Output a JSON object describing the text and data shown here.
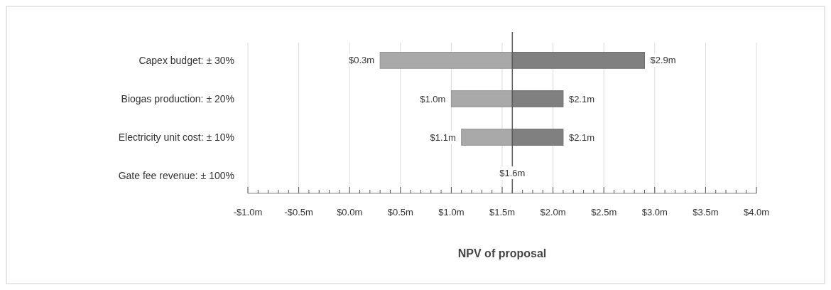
{
  "chart_data": {
    "type": "bar",
    "orientation": "horizontal",
    "categories": [
      "Capex budget: ± 30%",
      "Biogas production: ± 20%",
      "Electricity unit cost: ± 10%",
      "Gate fee revenue: ± 100%"
    ],
    "series": [
      {
        "color": "#a9a9a9",
        "base": [
          0.3,
          1.0,
          1.1,
          null
        ],
        "values": [
          1.3,
          0.6,
          0.5,
          null
        ]
      },
      {
        "color": "#808080",
        "base": [
          1.6,
          1.6,
          1.6,
          null
        ],
        "values": [
          1.3,
          0.5,
          0.5,
          null
        ]
      }
    ],
    "annotations": [
      {
        "text": "$0.3m",
        "x": 0.3,
        "y": "Capex budget: ± 30%"
      },
      {
        "text": "$2.9m",
        "x": 2.9,
        "y": "Capex budget: ± 30%"
      },
      {
        "text": "$1.0m",
        "x": 1.0,
        "y": "Biogas production: ± 20%"
      },
      {
        "text": "$2.1m",
        "x": 2.1,
        "y": "Biogas production: ± 20%"
      },
      {
        "text": "$1.1m",
        "x": 1.1,
        "y": "Electricity unit cost: ± 10%"
      },
      {
        "text": "$2.1m",
        "x": 2.1,
        "y": "Electricity unit cost: ± 10%"
      },
      {
        "text": "$1.6m",
        "x": 1.6,
        "y": "Gate fee revenue: ± 100%"
      }
    ],
    "xlim": [
      -1.0,
      4.0
    ],
    "xticks": [
      {
        "value": -1.0,
        "label": "-$1.0m"
      },
      {
        "value": -0.9,
        "label": null
      },
      {
        "value": -0.8,
        "label": null
      },
      {
        "value": -0.7,
        "label": null
      },
      {
        "value": -0.6,
        "label": null
      },
      {
        "value": -0.5,
        "label": "-$0.5m"
      },
      {
        "value": -0.4,
        "label": null
      },
      {
        "value": -0.3,
        "label": null
      },
      {
        "value": -0.2,
        "label": null
      },
      {
        "value": -0.1,
        "label": null
      },
      {
        "value": 0,
        "label": "$0.0m"
      },
      {
        "value": 0.1,
        "label": null
      },
      {
        "value": 0.2,
        "label": null
      },
      {
        "value": 0.3,
        "label": null
      },
      {
        "value": 0.4,
        "label": null
      },
      {
        "value": 0.5,
        "label": "$0.5m"
      },
      {
        "value": 0.6,
        "label": null
      },
      {
        "value": 0.7,
        "label": null
      },
      {
        "value": 0.8,
        "label": null
      },
      {
        "value": 0.9,
        "label": null
      },
      {
        "value": 1.0,
        "label": "$1.0m"
      },
      {
        "value": 1.1,
        "label": null
      },
      {
        "value": 1.2,
        "label": null
      },
      {
        "value": 1.3,
        "label": null
      },
      {
        "value": 1.4,
        "label": null
      },
      {
        "value": 1.5,
        "label": "$1.5m"
      },
      {
        "value": 1.6,
        "label": null
      },
      {
        "value": 1.7,
        "label": null
      },
      {
        "value": 1.8,
        "label": null
      },
      {
        "value": 1.9,
        "label": null
      },
      {
        "value": 2.0,
        "label": "$2.0m"
      },
      {
        "value": 2.1,
        "label": null
      },
      {
        "value": 2.2,
        "label": null
      },
      {
        "value": 2.3,
        "label": null
      },
      {
        "value": 2.4,
        "label": null
      },
      {
        "value": 2.5,
        "label": "$2.5m"
      },
      {
        "value": 2.6,
        "label": null
      },
      {
        "value": 2.7,
        "label": null
      },
      {
        "value": 2.8,
        "label": null
      },
      {
        "value": 2.9,
        "label": null
      },
      {
        "value": 3.0,
        "label": "$3.0m"
      },
      {
        "value": 3.1,
        "label": null
      },
      {
        "value": 3.2,
        "label": null
      },
      {
        "value": 3.3,
        "label": null
      },
      {
        "value": 3.4,
        "label": null
      },
      {
        "value": 3.5,
        "label": "$3.5m"
      },
      {
        "value": 3.6,
        "label": null
      },
      {
        "value": 3.7,
        "label": null
      },
      {
        "value": 3.8,
        "label": null
      },
      {
        "value": 3.9,
        "label": null
      },
      {
        "value": 4.0,
        "label": "$4.0m"
      }
    ],
    "grid": "x",
    "xlabel": "NPV of proposal",
    "ref_lines": [
      {
        "axis": "x",
        "value": 1.6,
        "color": "#595959"
      }
    ]
  }
}
